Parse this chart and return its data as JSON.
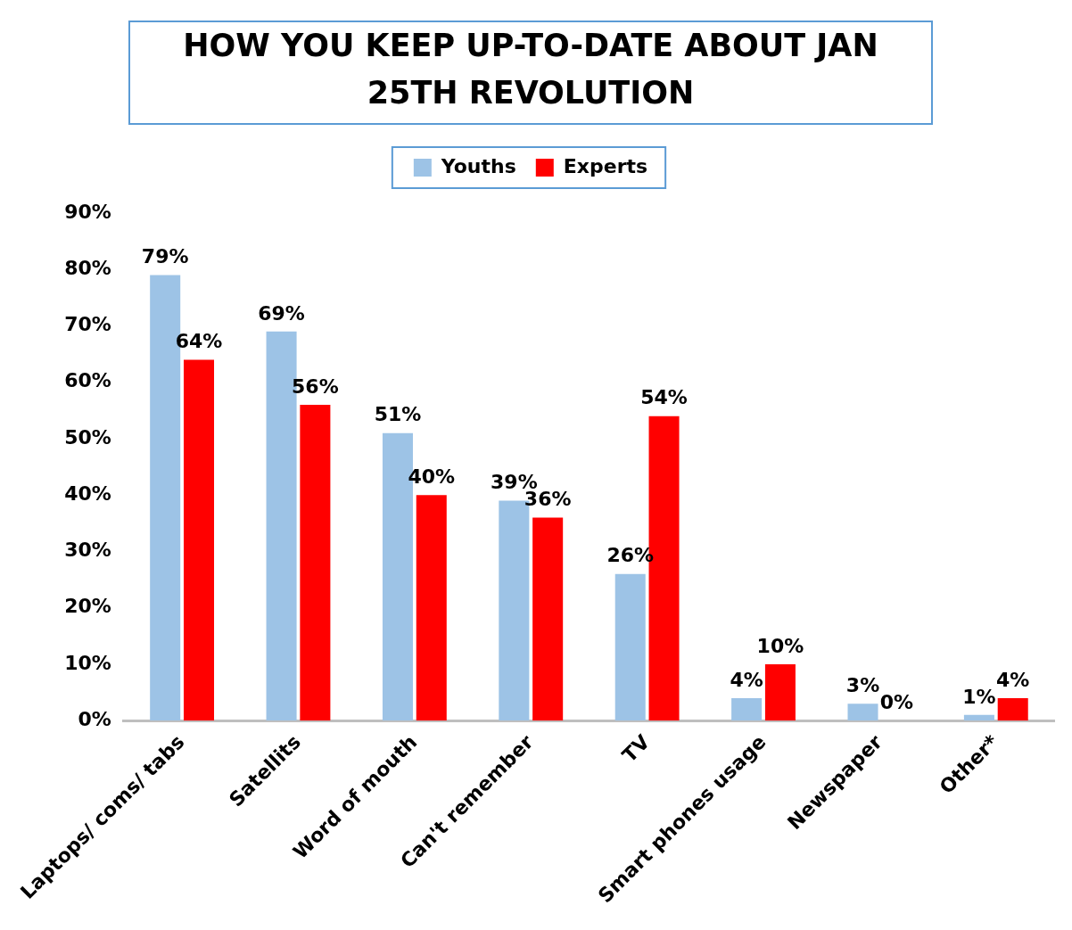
{
  "chart_data": {
    "type": "bar",
    "title": "HOW YOU KEEP UP-TO-DATE ABOUT JAN 25TH REVOLUTION",
    "categories": [
      "Laptops/ coms/ tabs",
      "Satellits",
      "Word of mouth",
      "Can't remember",
      "TV",
      "Smart phones usage",
      "Newspaper",
      "Other*"
    ],
    "series": [
      {
        "name": "Youths",
        "color": "#9dc3e6",
        "values": [
          79,
          69,
          51,
          39,
          26,
          4,
          3,
          1
        ],
        "value_labels": [
          "79%",
          "69%",
          "51%",
          "39%",
          "26%",
          "4%",
          "3%",
          "1%"
        ]
      },
      {
        "name": "Experts",
        "color": "#ff0000",
        "values": [
          64,
          56,
          40,
          36,
          54,
          10,
          0,
          4
        ],
        "value_labels": [
          "64%",
          "56%",
          "40%",
          "36%",
          "54%",
          "10%",
          "0%",
          "4%"
        ]
      }
    ],
    "ylim": [
      0,
      90
    ],
    "yticks": [
      {
        "value": 0,
        "label": "0%"
      },
      {
        "value": 10,
        "label": "10%"
      },
      {
        "value": 20,
        "label": "20%"
      },
      {
        "value": 30,
        "label": "30%"
      },
      {
        "value": 40,
        "label": "40%"
      },
      {
        "value": 50,
        "label": "50%"
      },
      {
        "value": 60,
        "label": "60%"
      },
      {
        "value": 70,
        "label": "70%"
      },
      {
        "value": 80,
        "label": "80%"
      },
      {
        "value": 90,
        "label": "90%"
      }
    ],
    "grid": false,
    "legend": "top"
  }
}
